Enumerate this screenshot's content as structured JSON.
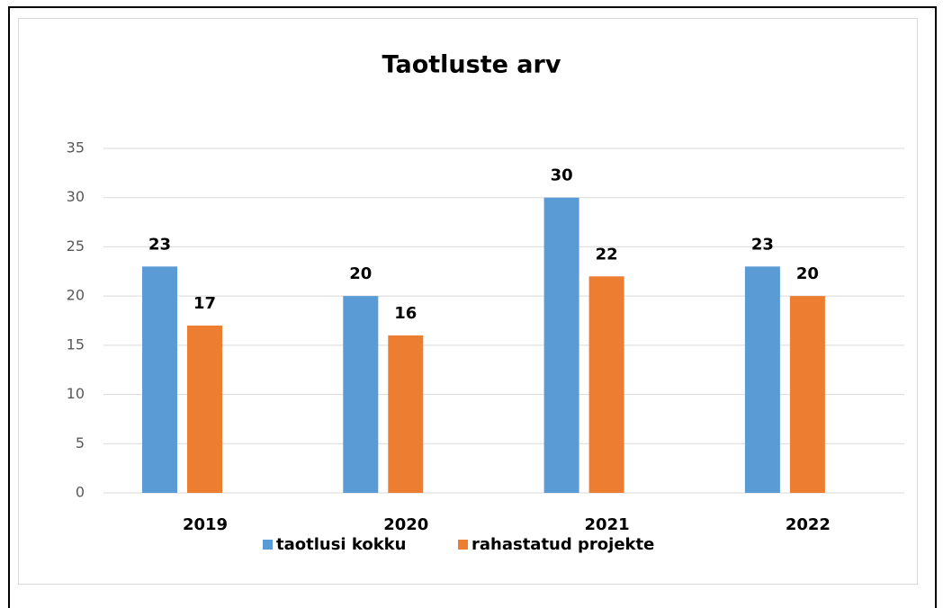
{
  "chart_data": {
    "type": "bar",
    "title": "Taotluste arv",
    "categories": [
      "2019",
      "2020",
      "2021",
      "2022"
    ],
    "series": [
      {
        "name": "taotlusi kokku",
        "color": "#5b9bd5",
        "values": [
          23,
          20,
          30,
          23
        ]
      },
      {
        "name": "rahastatud projekte",
        "color": "#ed7d31",
        "values": [
          17,
          16,
          22,
          20
        ]
      }
    ],
    "ylim": [
      0,
      35
    ],
    "yticks": [
      0,
      5,
      10,
      15,
      20,
      25,
      30,
      35
    ],
    "grid": true,
    "legend": "bottom"
  }
}
